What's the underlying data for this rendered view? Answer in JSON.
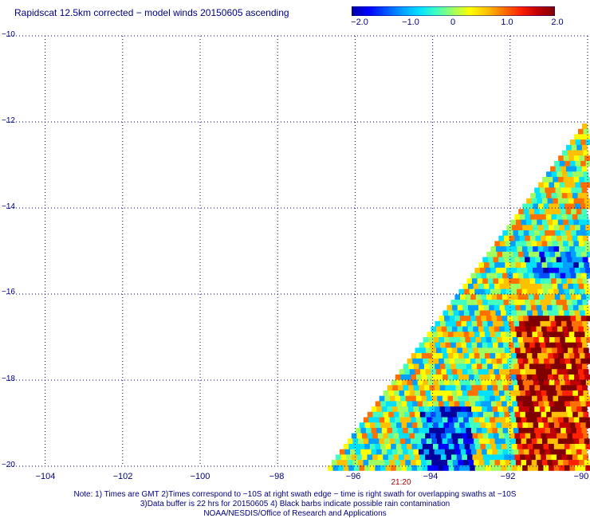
{
  "title": "Rapidscat 12.5km corrected − model winds 20150605 ascending",
  "colorbar": {
    "labels": [
      "−2.0",
      "−1.0",
      "0",
      "1.0",
      "2.0"
    ],
    "colors": [
      "#0000a0",
      "#0000ff",
      "#0050ff",
      "#00a0ff",
      "#00e0ff",
      "#40ffc0",
      "#a0ff60",
      "#ffff00",
      "#ffc000",
      "#ff7000",
      "#ff2000",
      "#c00000",
      "#800000"
    ]
  },
  "axes": {
    "lon_ticks": [
      "−104",
      "−102",
      "−100",
      "−98",
      "−96",
      "−94",
      "−92",
      "−90"
    ],
    "lat_ticks": [
      "−10",
      "−12",
      "−14",
      "−16",
      "−18",
      "−20"
    ],
    "lon_range": [
      -105,
      -90
    ],
    "lat_range": [
      -20,
      -10
    ],
    "grid": true,
    "grid_color": "#000080"
  },
  "swath_time": "21:20",
  "notes": [
    "Note: 1) Times are GMT 2)Times correspond to −10S at right swath edge − time is right swath for overlapping swaths at −10S",
    "3)Data buffer is 22 hrs for 20150605 4) Black barbs indicate possible rain contamination",
    "NOAA/NESDIS/Office of Research and Applications"
  ]
}
